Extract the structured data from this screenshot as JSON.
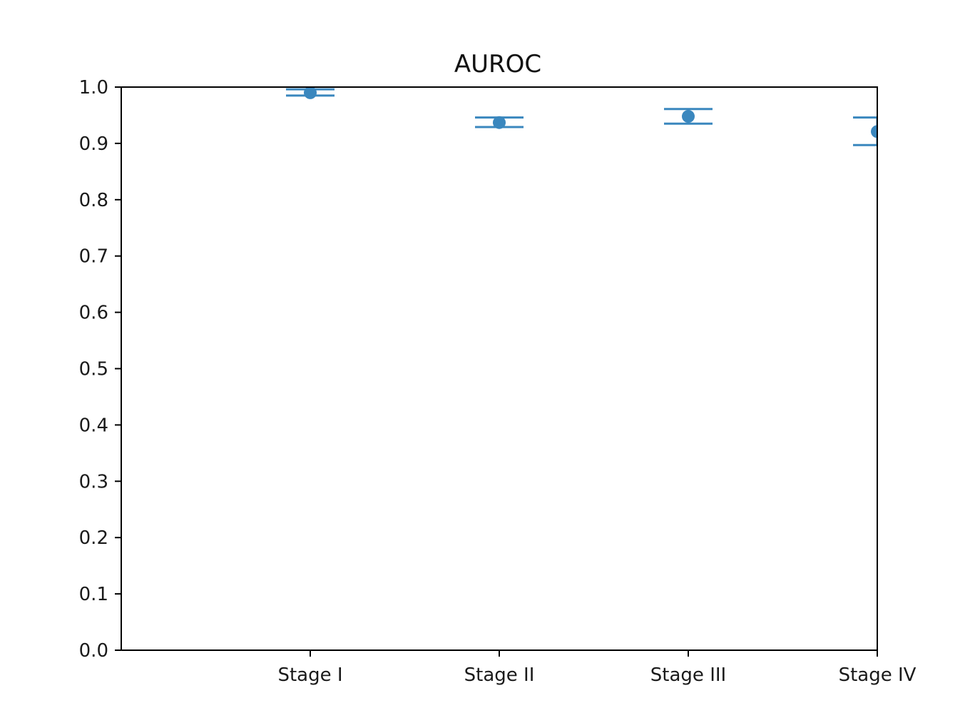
{
  "chart_data": {
    "type": "errorbar",
    "title": "AUROC",
    "xlabel": "",
    "ylabel": "",
    "categories": [
      "Stage I",
      "Stage II",
      "Stage III",
      "Stage IV"
    ],
    "values": [
      0.99,
      0.937,
      0.948,
      0.921
    ],
    "ci_lower": [
      0.985,
      0.929,
      0.935,
      0.897
    ],
    "ci_upper": [
      0.996,
      0.946,
      0.961,
      0.946
    ],
    "ylim": [
      0.0,
      1.0
    ],
    "yticks": [
      "0.0",
      "0.1",
      "0.2",
      "0.3",
      "0.4",
      "0.5",
      "0.6",
      "0.7",
      "0.8",
      "0.9",
      "1.0"
    ],
    "grid": false,
    "legend": "none",
    "color": "#3a87be"
  }
}
